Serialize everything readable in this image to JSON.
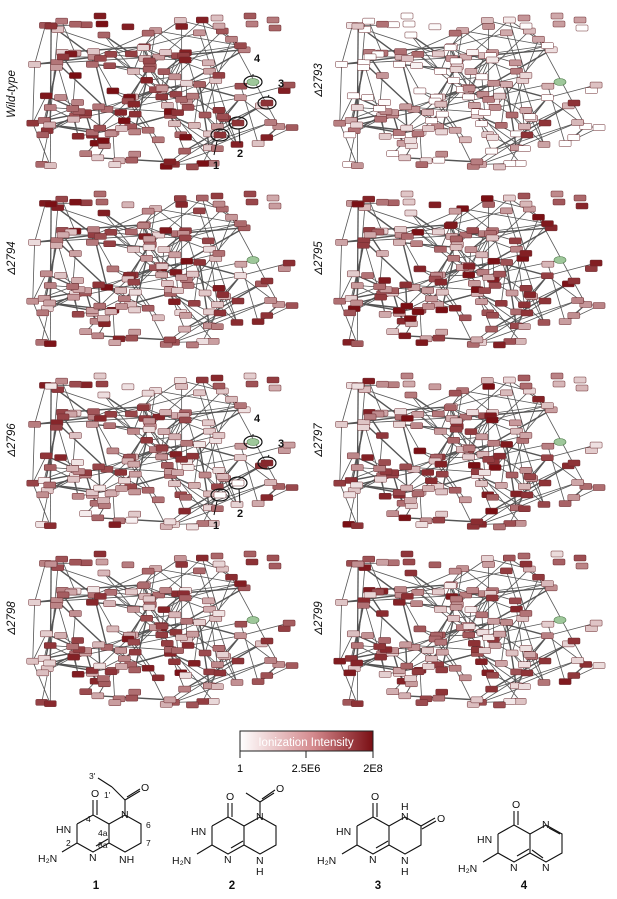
{
  "panels": [
    {
      "id": "wt",
      "label": "Wild-type",
      "seed": 11,
      "bias": 0.62,
      "callouts": true,
      "callout_fill": true
    },
    {
      "id": "d2793",
      "label": "Δ2793",
      "seed": 23,
      "bias": 0.18,
      "callouts": false,
      "callout_fill": false
    },
    {
      "id": "d2794",
      "label": "Δ2794",
      "seed": 37,
      "bias": 0.58,
      "callouts": false,
      "callout_fill": false
    },
    {
      "id": "d2795",
      "label": "Δ2795",
      "seed": 41,
      "bias": 0.62,
      "callouts": false,
      "callout_fill": false
    },
    {
      "id": "d2796",
      "label": "Δ2796",
      "seed": 53,
      "bias": 0.5,
      "callouts": true,
      "callout_fill": false
    },
    {
      "id": "d2797",
      "label": "Δ2797",
      "seed": 67,
      "bias": 0.57,
      "callouts": false,
      "callout_fill": false
    },
    {
      "id": "d2798",
      "label": "Δ2798",
      "seed": 71,
      "bias": 0.55,
      "callouts": false,
      "callout_fill": false
    },
    {
      "id": "d2799",
      "label": "Δ2799",
      "seed": 83,
      "bias": 0.52,
      "callouts": false,
      "callout_fill": false
    }
  ],
  "callout_numbers": [
    "1",
    "2",
    "3",
    "4"
  ],
  "legend": {
    "title": "Ionization Intensity",
    "ticks": [
      "1",
      "2.5E6",
      "2E8"
    ],
    "color_low": "#ffffff",
    "color_high": "#7a0f14"
  },
  "colors": {
    "edge": "#555555",
    "node_stroke": "#6b2a2e",
    "highlight_node": "#9ec79a"
  },
  "structures": [
    {
      "number": "1"
    },
    {
      "number": "2"
    },
    {
      "number": "3"
    },
    {
      "number": "4"
    }
  ],
  "atom_labels": {
    "O": "O",
    "NH": "NH",
    "N": "N",
    "H": "H",
    "H2N": "H₂N",
    "HN": "HN",
    "4": "4",
    "4a": "4a",
    "6": "6",
    "7": "7",
    "2": "2",
    "8a": "8a",
    "1p": "1'",
    "3p": "3'"
  }
}
